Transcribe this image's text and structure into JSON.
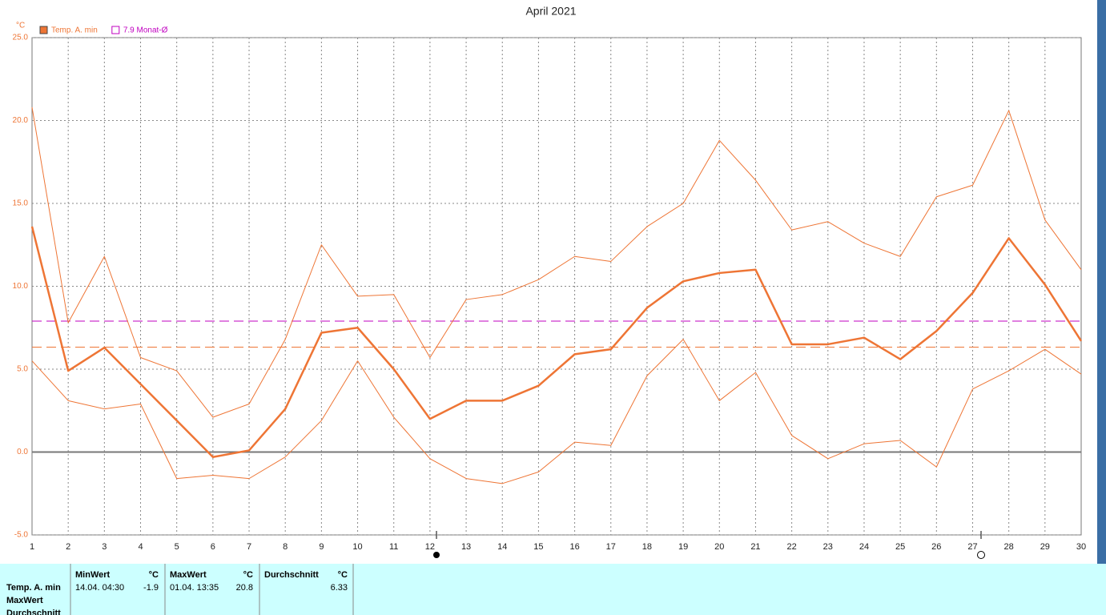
{
  "chart_data": {
    "type": "line",
    "title": "April 2021",
    "y_unit": "°C",
    "x": [
      1,
      2,
      3,
      4,
      5,
      6,
      7,
      8,
      9,
      10,
      11,
      12,
      13,
      14,
      15,
      16,
      17,
      18,
      19,
      20,
      21,
      22,
      23,
      24,
      25,
      26,
      27,
      28,
      29,
      30
    ],
    "xlim": [
      1,
      30
    ],
    "xticks": [
      1,
      2,
      3,
      4,
      5,
      6,
      7,
      8,
      9,
      10,
      11,
      12,
      13,
      14,
      15,
      16,
      17,
      18,
      19,
      20,
      21,
      22,
      23,
      24,
      25,
      26,
      27,
      28,
      29,
      30
    ],
    "ylim": [
      -5,
      25
    ],
    "yticks": [
      {
        "value": -5,
        "label": "-5.0"
      },
      {
        "value": 0,
        "label": "0.0"
      },
      {
        "value": 5,
        "label": "5.0"
      },
      {
        "value": 10,
        "label": "10.0"
      },
      {
        "value": 15,
        "label": "15.0"
      },
      {
        "value": 20,
        "label": "20.0"
      },
      {
        "value": 25,
        "label": "25.0"
      }
    ],
    "grid": true,
    "series": [
      {
        "name": "Temp. A. min",
        "color": "#ee7535",
        "width": 2.5,
        "values": [
          13.6,
          4.9,
          6.3,
          4.1,
          1.9,
          -0.3,
          0.1,
          2.6,
          7.2,
          7.5,
          5.0,
          2.0,
          3.1,
          3.1,
          4.0,
          5.9,
          6.2,
          8.7,
          10.3,
          10.8,
          11.0,
          6.5,
          6.5,
          6.9,
          5.6,
          7.3,
          9.6,
          12.9,
          10.1,
          6.7
        ]
      },
      {
        "color": "#ee7535",
        "width": 1,
        "values": [
          20.8,
          7.8,
          11.8,
          5.7,
          4.9,
          2.1,
          2.9,
          6.8,
          12.5,
          9.4,
          9.5,
          5.7,
          9.2,
          9.5,
          10.4,
          11.8,
          11.5,
          13.6,
          15.0,
          18.8,
          16.4,
          13.4,
          13.9,
          12.6,
          11.8,
          15.4,
          16.1,
          20.6,
          14.0,
          11.0
        ]
      },
      {
        "color": "#ee7535",
        "width": 1,
        "values": [
          5.5,
          3.1,
          2.6,
          2.9,
          -1.6,
          -1.4,
          -1.6,
          -0.3,
          1.9,
          5.5,
          2.1,
          -0.4,
          -1.6,
          -1.9,
          -1.2,
          0.6,
          0.4,
          4.6,
          6.8,
          3.1,
          4.8,
          1.0,
          -0.4,
          0.5,
          0.7,
          -0.9,
          3.8,
          4.9,
          6.2,
          4.7
        ]
      }
    ],
    "reference_lines": [
      {
        "value": 7.9,
        "label": "7.9 Monat-Ø",
        "color": "#c000c0"
      },
      {
        "value": 6.33,
        "color": "#ee7535"
      }
    ]
  },
  "table": {
    "row_labels": [
      "Temp. A. min",
      "MaxWert",
      "Durchschnitt"
    ],
    "cells": [
      {
        "header": "MinWert",
        "unit": "°C",
        "time": "14.04.  04:30",
        "value": -1.9
      },
      {
        "header": "MaxWert",
        "unit": "°C",
        "time": "01.04.  13:35",
        "value": 20.8
      },
      {
        "header": "Durchschnitt",
        "unit": "°C",
        "value": 6.33
      }
    ]
  }
}
